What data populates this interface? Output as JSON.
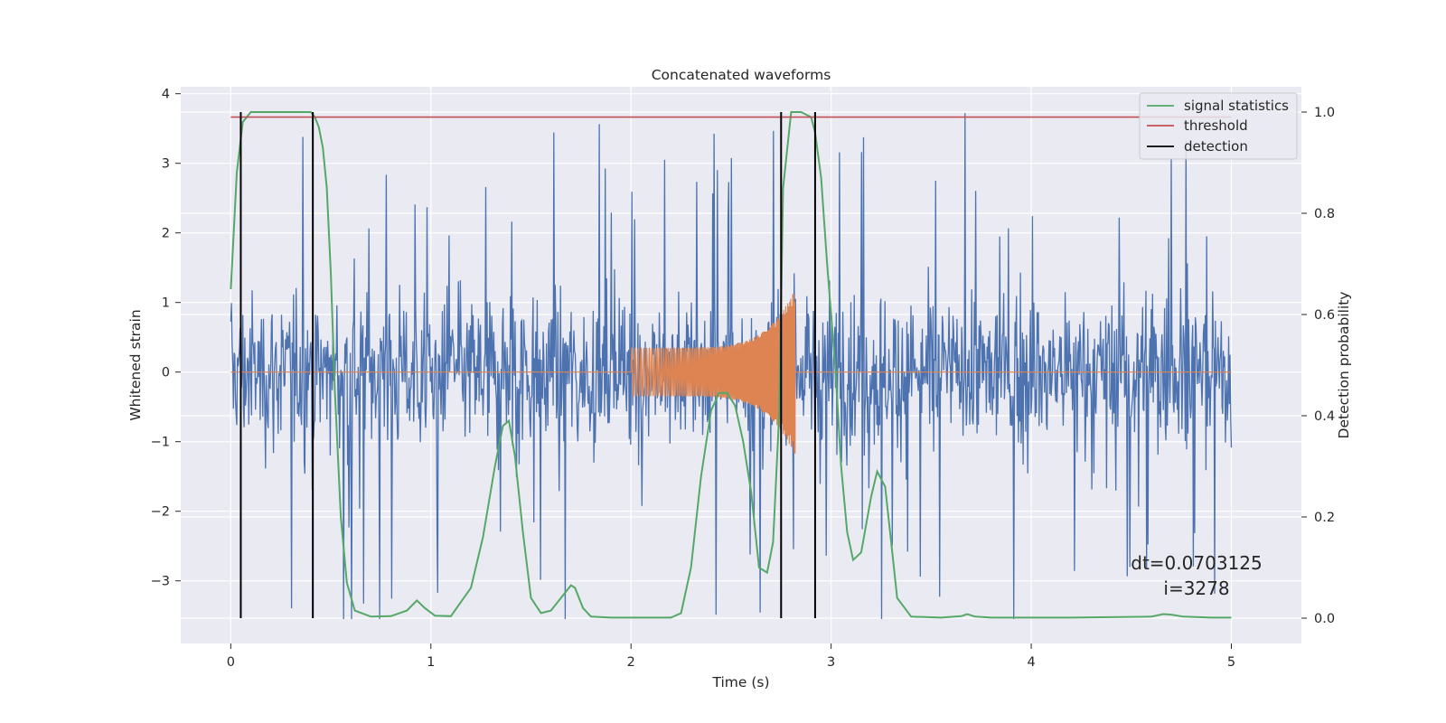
{
  "chart_data": {
    "type": "line",
    "title": "Concatenated waveforms",
    "xlabel": "Time (s)",
    "ylabel_left": "Whitened strain",
    "ylabel_right": "Detection probability",
    "xlim": [
      -0.25,
      5.35
    ],
    "ylim_left": [
      -3.9,
      4.1
    ],
    "ylim_right": [
      -0.05,
      1.05
    ],
    "x_ticks": [
      0,
      1,
      2,
      3,
      4,
      5
    ],
    "y_ticks_left": [
      -3,
      -2,
      -1,
      0,
      1,
      2,
      3,
      4
    ],
    "y_ticks_right": [
      0.0,
      0.2,
      0.4,
      0.6,
      0.8,
      1.0
    ],
    "x_tick_labels": [
      "0",
      "1",
      "2",
      "3",
      "4",
      "5"
    ],
    "y_tick_labels_left": [
      "−3",
      "−2",
      "−1",
      "0",
      "1",
      "2",
      "3",
      "4"
    ],
    "y_tick_labels_right": [
      "0.0",
      "0.2",
      "0.4",
      "0.6",
      "0.8",
      "1.0"
    ],
    "grid": true,
    "legend_position": "top-right",
    "legend": [
      "signal statistics",
      "threshold",
      "detection"
    ],
    "annotation_lines": [
      "dt=0.0703125",
      "i=3278"
    ],
    "colors": {
      "background": "#eaeaf2",
      "grid": "#ffffff",
      "strain": "#4c72b0",
      "injection": "#dd8452",
      "signal_statistics": "#55a868",
      "threshold": "#c44e52",
      "detection": "#000000"
    },
    "series": [
      {
        "name": "",
        "axis": "left",
        "kind": "noise",
        "x_range": [
          0,
          5
        ],
        "amplitude_typical": 1.4,
        "amplitude_peak_max": 3.75,
        "amplitude_trough_min": -3.55
      },
      {
        "name": "",
        "axis": "left",
        "kind": "chirp",
        "x_range": [
          0,
          5
        ],
        "chirp_range": [
          2.0,
          2.82
        ],
        "amplitude_start": 0.35,
        "amplitude_peak": 1.2,
        "amplitude_trough": -0.95
      },
      {
        "name": "signal statistics",
        "axis": "right",
        "kind": "line",
        "x": [
          0,
          0.03,
          0.06,
          0.1,
          0.15,
          0.4,
          0.42,
          0.44,
          0.46,
          0.48,
          0.5,
          0.52,
          0.55,
          0.58,
          0.62,
          0.7,
          0.8,
          0.88,
          0.93,
          0.97,
          1.02,
          1.1,
          1.2,
          1.26,
          1.32,
          1.36,
          1.39,
          1.42,
          1.46,
          1.5,
          1.55,
          1.6,
          1.65,
          1.7,
          1.72,
          1.76,
          1.8,
          1.9,
          2.1,
          2.2,
          2.25,
          2.3,
          2.35,
          2.4,
          2.44,
          2.48,
          2.52,
          2.56,
          2.6,
          2.64,
          2.68,
          2.71,
          2.74,
          2.76,
          2.8,
          2.85,
          2.9,
          2.92,
          2.95,
          2.98,
          3.02,
          3.05,
          3.08,
          3.11,
          3.15,
          3.2,
          3.23,
          3.27,
          3.3,
          3.33,
          3.4,
          3.55,
          3.65,
          3.68,
          3.72,
          3.8,
          4.2,
          4.6,
          4.66,
          4.7,
          4.76,
          4.9,
          5.0
        ],
        "y": [
          0.65,
          0.88,
          0.98,
          1.0,
          1.0,
          1.0,
          0.99,
          0.97,
          0.93,
          0.85,
          0.68,
          0.45,
          0.2,
          0.07,
          0.015,
          0.003,
          0.004,
          0.015,
          0.035,
          0.02,
          0.005,
          0.004,
          0.06,
          0.16,
          0.3,
          0.38,
          0.39,
          0.32,
          0.17,
          0.04,
          0.01,
          0.015,
          0.04,
          0.065,
          0.06,
          0.02,
          0.003,
          0.001,
          0.001,
          0.001,
          0.01,
          0.1,
          0.28,
          0.41,
          0.445,
          0.445,
          0.42,
          0.35,
          0.25,
          0.1,
          0.09,
          0.15,
          0.4,
          0.85,
          1.0,
          1.0,
          0.99,
          0.96,
          0.87,
          0.7,
          0.5,
          0.3,
          0.17,
          0.115,
          0.13,
          0.24,
          0.29,
          0.26,
          0.15,
          0.04,
          0.003,
          0.001,
          0.004,
          0.008,
          0.003,
          0.001,
          0.001,
          0.003,
          0.008,
          0.007,
          0.003,
          0.001,
          0.001
        ]
      },
      {
        "name": "threshold",
        "axis": "right",
        "kind": "line",
        "x": [
          0,
          5
        ],
        "y": [
          0.99,
          0.99
        ]
      },
      {
        "name": "detection",
        "axis": "right",
        "kind": "vlines",
        "x": [
          0.05,
          0.41,
          2.75,
          2.92
        ],
        "ymin": 0.0,
        "ymax": 1.0
      }
    ]
  }
}
